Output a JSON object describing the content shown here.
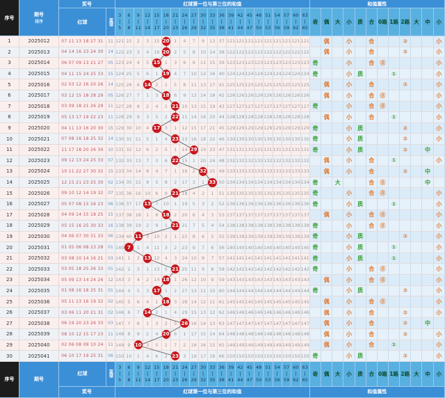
{
  "header": {
    "seq": "序号",
    "issue": "期号",
    "sort": "排序",
    "prize": "奖号",
    "red": "红球",
    "blue": "蓝球",
    "sum_title": "红球第一位与第三位的和值",
    "attr_title": "和值属性"
  },
  "bins": [
    [
      "3",
      "5"
    ],
    [
      "6",
      "8"
    ],
    [
      "9",
      "11"
    ],
    [
      "12",
      "14"
    ],
    [
      "15",
      "17"
    ],
    [
      "18",
      "20"
    ],
    [
      "21",
      "23"
    ],
    [
      "24",
      "26"
    ],
    [
      "27",
      "29"
    ],
    [
      "30",
      "32"
    ],
    [
      "33",
      "35"
    ],
    [
      "36",
      "38"
    ],
    [
      "39",
      "41"
    ],
    [
      "42",
      "44"
    ],
    [
      "45",
      "47"
    ],
    [
      "48",
      "50"
    ],
    [
      "51",
      "53"
    ],
    [
      "54",
      "56"
    ],
    [
      "57",
      "59"
    ],
    [
      "60",
      "62"
    ],
    [
      "63",
      "65"
    ]
  ],
  "attr_labels": [
    "奇",
    "偶",
    "大",
    "小",
    "质",
    "合",
    "0路",
    "1路",
    "2路",
    "大",
    "中",
    "小"
  ],
  "first_row_omission": [
    121,
    22,
    2,
    3,
    15,
    0,
    1,
    4,
    7,
    9,
    13,
    37,
    121,
    121,
    121,
    121,
    121,
    121,
    121,
    121,
    121
  ],
  "rows": [
    {
      "seq": "1",
      "issue": "2025012",
      "red": "07 11 13 18 27 31",
      "blue": "11",
      "sum": 20
    },
    {
      "seq": "2",
      "issue": "2025013",
      "red": "04 14 16 23 24 30",
      "blue": "14",
      "sum": 20
    },
    {
      "seq": "3",
      "issue": "2025014",
      "red": "06 07 09 13 21 27",
      "blue": "05",
      "sum": 15
    },
    {
      "seq": "4",
      "issue": "2025015",
      "red": "04 11 15 24 25 33",
      "blue": "15",
      "sum": 19
    },
    {
      "seq": "5",
      "issue": "2025016",
      "red": "02 03 12 16 20 26",
      "blue": "14",
      "sum": 14
    },
    {
      "seq": "6",
      "issue": "2025017",
      "red": "03 12 15 18 28 29",
      "blue": "05",
      "sum": 18
    },
    {
      "seq": "7",
      "issue": "2025018",
      "red": "03 09 18 21 26 29",
      "blue": "11",
      "sum": 21
    },
    {
      "seq": "8",
      "issue": "2025019",
      "red": "05 13 17 19 22 23",
      "blue": "11",
      "sum": 22
    },
    {
      "seq": "9",
      "issue": "2025020",
      "red": "04 11 13 16 20 30",
      "blue": "15",
      "sum": 17
    },
    {
      "seq": "10",
      "issue": "2025021",
      "red": "07 08 16 18 25 32",
      "blue": "14",
      "sum": 23
    },
    {
      "seq": "11",
      "issue": "2025022",
      "red": "11 17 18 20 26 30",
      "blue": "10",
      "sum": 29
    },
    {
      "seq": "12",
      "issue": "2025023",
      "red": "09 12 13 24 25 33",
      "blue": "07",
      "sum": 22
    },
    {
      "seq": "13",
      "issue": "2025024",
      "red": "10 11 22 27 30 32",
      "blue": "15",
      "sum": 32
    },
    {
      "seq": "14",
      "issue": "2025025",
      "red": "12 15 21 23 25 30",
      "blue": "02",
      "sum": 33
    },
    {
      "seq": "15",
      "issue": "2025026",
      "red": "09 10 12 14 19 32",
      "blue": "07",
      "sum": 21
    },
    {
      "seq": "16",
      "issue": "2025027",
      "red": "05 07 08 15 16 23",
      "blue": "06",
      "sum": 13
    },
    {
      "seq": "17",
      "issue": "2025028",
      "red": "04 09 14 15 18 25",
      "blue": "15",
      "sum": 18
    },
    {
      "seq": "18",
      "issue": "2025029",
      "red": "05 15 16 25 30 33",
      "blue": "16",
      "sum": 21
    },
    {
      "seq": "19",
      "issue": "2025030",
      "red": "04 06 07 30 31 33",
      "blue": "06",
      "sum": 11
    },
    {
      "seq": "20",
      "issue": "2025031",
      "red": "01 05 06 08 23 28",
      "blue": "01",
      "sum": 7
    },
    {
      "seq": "21",
      "issue": "2025032",
      "red": "03 08 10 14 16 21",
      "blue": "03",
      "sum": 13
    },
    {
      "seq": "22",
      "issue": "2025033",
      "red": "03 05 18 25 26 33",
      "blue": "01",
      "sum": 21
    },
    {
      "seq": "23",
      "issue": "2025034",
      "red": "05 09 13 14 24 26",
      "blue": "12",
      "sum": 18
    },
    {
      "seq": "24",
      "issue": "2025035",
      "red": "01 08 16 18 25 31",
      "blue": "01",
      "sum": 17
    },
    {
      "seq": "25",
      "issue": "2025036",
      "red": "05 11 13 16 19 32",
      "blue": "02",
      "sum": 18
    },
    {
      "seq": "26",
      "issue": "2025037",
      "red": "03 06 11 20 21 31",
      "blue": "02",
      "sum": 14
    },
    {
      "seq": "27",
      "issue": "2025038",
      "red": "06 19 20 23 26 33",
      "blue": "03",
      "sum": 26
    },
    {
      "seq": "28",
      "issue": "2025039",
      "red": "08 10 12 15 17 23",
      "blue": "11",
      "sum": 20
    },
    {
      "seq": "29",
      "issue": "2025040",
      "red": "02 06 08 09 10 24",
      "blue": "11",
      "sum": 10
    },
    {
      "seq": "30",
      "issue": "2025041",
      "red": "06 10 17 19 25 31",
      "blue": "06",
      "sum": 23
    }
  ],
  "colors": {
    "ball": "#c8161d",
    "header": "#3b8fd6",
    "green": "#3aa03a",
    "orange": "#e0762a"
  }
}
